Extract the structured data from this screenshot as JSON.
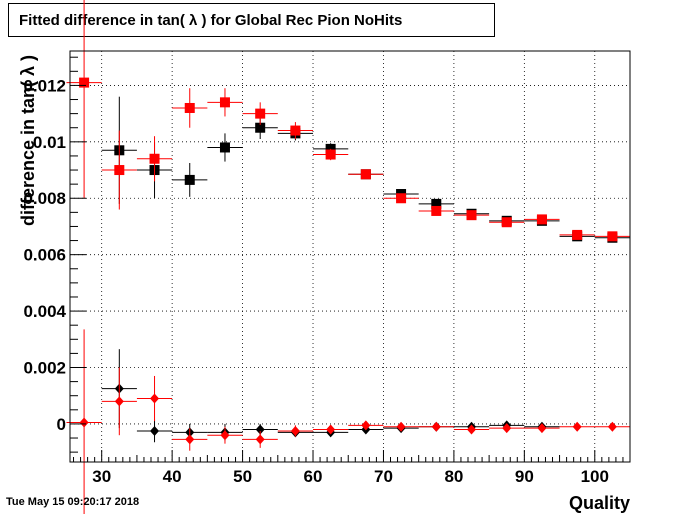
{
  "title": "Fitted difference in tan( λ ) for Global Rec Pion NoHits",
  "timestamp": "Tue May 15 09:20:17 2018",
  "chart_data": {
    "type": "scatter",
    "xlabel": "Quality",
    "ylabel": "difference in tan( λ )",
    "xlim": [
      25.5,
      105
    ],
    "ylim": [
      -0.00135,
      0.01322
    ],
    "x_ticks": [
      30,
      40,
      50,
      60,
      70,
      80,
      90,
      100
    ],
    "y_ticks": [
      0,
      0.002,
      0.004,
      0.006,
      0.008,
      0.01,
      0.012
    ],
    "y_tick_labels": [
      "0",
      "0.002",
      "0.004",
      "0.006",
      "0.008",
      "0.01",
      "0.012"
    ],
    "grid": true,
    "series": [
      {
        "color": "#000000",
        "marker": "square",
        "points": [
          {
            "x": 32.5,
            "y": 0.0097,
            "yerr": 0.0019
          },
          {
            "x": 37.5,
            "y": 0.009,
            "yerr": 0.001
          },
          {
            "x": 42.5,
            "y": 0.00865,
            "yerr": 0.0006
          },
          {
            "x": 47.5,
            "y": 0.0098,
            "yerr": 0.0005
          },
          {
            "x": 52.5,
            "y": 0.0105,
            "yerr": 0.0004
          },
          {
            "x": 57.5,
            "y": 0.0103,
            "yerr": 0.00025
          },
          {
            "x": 62.5,
            "y": 0.00975,
            "yerr": 0.0002
          },
          {
            "x": 67.5,
            "y": 0.00885,
            "yerr": 0.00012
          },
          {
            "x": 72.5,
            "y": 0.00815,
            "yerr": 0.0001
          },
          {
            "x": 77.5,
            "y": 0.0078,
            "yerr": 0.0001
          },
          {
            "x": 82.5,
            "y": 0.00745,
            "yerr": 0.0001
          },
          {
            "x": 87.5,
            "y": 0.0072,
            "yerr": 0.0001
          },
          {
            "x": 92.5,
            "y": 0.0072,
            "yerr": 0.0001
          },
          {
            "x": 97.5,
            "y": 0.00665,
            "yerr": 0.0001
          },
          {
            "x": 102.5,
            "y": 0.0066,
            "yerr": 0.0001
          }
        ]
      },
      {
        "color": "#ff0000",
        "marker": "square",
        "points": [
          {
            "x": 27.5,
            "y": 0.0121,
            "yerr": 0.0041
          },
          {
            "x": 32.5,
            "y": 0.009,
            "yerr": 0.0014
          },
          {
            "x": 37.5,
            "y": 0.0094,
            "yerr": 0.0008
          },
          {
            "x": 42.5,
            "y": 0.0112,
            "yerr": 0.0007
          },
          {
            "x": 47.5,
            "y": 0.0114,
            "yerr": 0.0005
          },
          {
            "x": 52.5,
            "y": 0.011,
            "yerr": 0.0004
          },
          {
            "x": 57.5,
            "y": 0.0104,
            "yerr": 0.0003
          },
          {
            "x": 62.5,
            "y": 0.00955,
            "yerr": 0.0002
          },
          {
            "x": 67.5,
            "y": 0.00885,
            "yerr": 0.00012
          },
          {
            "x": 72.5,
            "y": 0.008,
            "yerr": 0.0001
          },
          {
            "x": 77.5,
            "y": 0.00755,
            "yerr": 0.0001
          },
          {
            "x": 82.5,
            "y": 0.0074,
            "yerr": 0.0001
          },
          {
            "x": 87.5,
            "y": 0.00715,
            "yerr": 0.0001
          },
          {
            "x": 92.5,
            "y": 0.00725,
            "yerr": 0.0001
          },
          {
            "x": 97.5,
            "y": 0.0067,
            "yerr": 0.0001
          },
          {
            "x": 102.5,
            "y": 0.00665,
            "yerr": 0.0001
          }
        ]
      },
      {
        "color": "#000000",
        "marker": "diamond",
        "points": [
          {
            "x": 32.5,
            "y": 0.00125,
            "yerr": 0.0014
          },
          {
            "x": 37.5,
            "y": -0.00025,
            "yerr": 0.0004
          },
          {
            "x": 42.5,
            "y": -0.0003,
            "yerr": 0.0003
          },
          {
            "x": 47.5,
            "y": -0.0003,
            "yerr": 0.0003
          },
          {
            "x": 52.5,
            "y": -0.0002,
            "yerr": 0.0002
          },
          {
            "x": 57.5,
            "y": -0.0003,
            "yerr": 0.00015
          },
          {
            "x": 62.5,
            "y": -0.0003,
            "yerr": 0.00012
          },
          {
            "x": 67.5,
            "y": -0.0002,
            "yerr": 0.0001
          },
          {
            "x": 72.5,
            "y": -0.00015,
            "yerr": 0.0001
          },
          {
            "x": 77.5,
            "y": -0.0001,
            "yerr": 0.0001
          },
          {
            "x": 82.5,
            "y": -0.0001,
            "yerr": 0.0001
          },
          {
            "x": 87.5,
            "y": -5e-05,
            "yerr": 0.0001
          },
          {
            "x": 92.5,
            "y": -0.0001,
            "yerr": 0.0001
          }
        ]
      },
      {
        "color": "#ff0000",
        "marker": "diamond",
        "points": [
          {
            "x": 27.5,
            "y": 5e-05,
            "yerr": 0.0033
          },
          {
            "x": 32.5,
            "y": 0.0008,
            "yerr": 0.0012
          },
          {
            "x": 37.5,
            "y": 0.0009,
            "yerr": 0.0008
          },
          {
            "x": 42.5,
            "y": -0.00055,
            "yerr": 0.0004
          },
          {
            "x": 47.5,
            "y": -0.0004,
            "yerr": 0.0003
          },
          {
            "x": 52.5,
            "y": -0.00055,
            "yerr": 0.0003
          },
          {
            "x": 57.5,
            "y": -0.00025,
            "yerr": 0.0002
          },
          {
            "x": 62.5,
            "y": -0.0002,
            "yerr": 0.00015
          },
          {
            "x": 67.5,
            "y": -5e-05,
            "yerr": 0.0001
          },
          {
            "x": 72.5,
            "y": -0.0001,
            "yerr": 0.0001
          },
          {
            "x": 77.5,
            "y": -0.0001,
            "yerr": 0.0001
          },
          {
            "x": 82.5,
            "y": -0.0002,
            "yerr": 0.0001
          },
          {
            "x": 87.5,
            "y": -0.00015,
            "yerr": 0.0001
          },
          {
            "x": 92.5,
            "y": -0.00015,
            "yerr": 0.0001
          },
          {
            "x": 97.5,
            "y": -0.0001,
            "yerr": 0.0001
          },
          {
            "x": 102.5,
            "y": -0.0001,
            "yerr": 0.0001
          }
        ]
      }
    ]
  }
}
